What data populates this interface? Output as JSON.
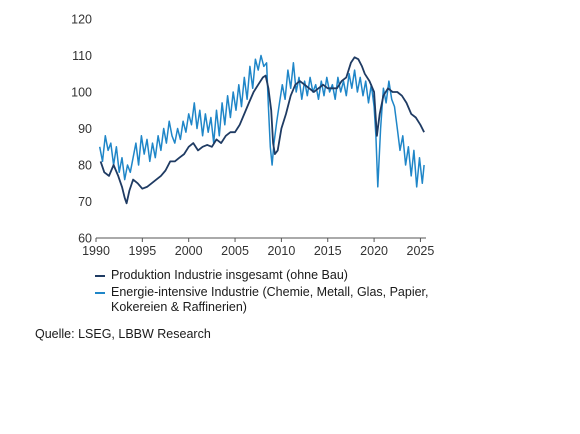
{
  "chart_data": {
    "type": "line",
    "title": "",
    "xlabel": "",
    "ylabel": "",
    "ylim": [
      60,
      120
    ],
    "xlim": [
      1990,
      2025.6
    ],
    "yticks": [
      "60",
      "70",
      "80",
      "90",
      "100",
      "110",
      "120"
    ],
    "xticks": [
      "1990",
      "1995",
      "2000",
      "2005",
      "2010",
      "2015",
      "2020",
      "2025"
    ],
    "grid": false,
    "legend": "bottom",
    "series": [
      {
        "name": "Produktion Industrie insgesamt (ohne Bau)",
        "color": "#1f3b63",
        "x": [
          1990.5,
          1990.9,
          1991.4,
          1991.9,
          1992.4,
          1992.8,
          1993.1,
          1993.3,
          1993.6,
          1994.0,
          1994.5,
          1995.0,
          1995.5,
          1996.0,
          1996.5,
          1997.0,
          1997.5,
          1998.0,
          1998.5,
          1999.0,
          1999.5,
          2000.0,
          2000.5,
          2001.0,
          2001.5,
          2002.0,
          2002.5,
          2003.0,
          2003.5,
          2004.0,
          2004.5,
          2005.0,
          2005.5,
          2006.0,
          2006.5,
          2007.0,
          2007.5,
          2008.0,
          2008.3,
          2008.6,
          2008.9,
          2009.1,
          2009.3,
          2009.6,
          2010.0,
          2010.5,
          2011.0,
          2011.5,
          2012.0,
          2012.5,
          2013.0,
          2013.5,
          2014.0,
          2014.5,
          2015.0,
          2015.5,
          2016.0,
          2016.5,
          2017.0,
          2017.5,
          2017.9,
          2018.3,
          2018.7,
          2019.0,
          2019.5,
          2020.0,
          2020.3,
          2020.6,
          2021.0,
          2021.5,
          2022.0,
          2022.5,
          2023.0,
          2023.5,
          2024.0,
          2024.5,
          2025.0,
          2025.4
        ],
        "values": [
          81,
          78,
          77,
          80,
          77,
          74,
          71,
          69.5,
          73,
          76,
          75,
          73.5,
          74,
          75,
          76,
          77,
          78.5,
          81,
          81,
          82,
          83,
          85,
          86,
          84,
          85,
          85.5,
          85,
          87,
          86,
          88,
          89,
          89,
          91,
          94,
          97,
          100,
          102,
          104,
          104.5,
          101,
          95,
          86,
          83,
          84,
          90,
          94,
          99,
          102,
          103,
          102,
          101,
          100,
          101,
          102,
          101,
          101,
          101,
          103,
          104,
          108,
          109.5,
          109,
          107,
          105,
          103,
          100,
          88,
          94,
          99,
          101,
          100,
          100,
          99,
          97,
          94,
          93,
          91,
          89
        ]
      },
      {
        "name": "Energie-intensive Industrie (Chemie, Metall, Glas, Papier, Kokereien & Raffinerien)",
        "color": "#1f86c8",
        "x": [
          1990.4,
          1990.7,
          1991.0,
          1991.3,
          1991.6,
          1991.9,
          1992.2,
          1992.5,
          1992.8,
          1993.1,
          1993.4,
          1993.7,
          1994.0,
          1994.3,
          1994.6,
          1994.9,
          1995.2,
          1995.5,
          1995.8,
          1996.1,
          1996.4,
          1996.7,
          1997.0,
          1997.3,
          1997.6,
          1997.9,
          1998.2,
          1998.5,
          1998.8,
          1999.1,
          1999.4,
          1999.7,
          2000.0,
          2000.3,
          2000.6,
          2000.9,
          2001.2,
          2001.5,
          2001.8,
          2002.1,
          2002.4,
          2002.7,
          2003.0,
          2003.3,
          2003.6,
          2003.9,
          2004.2,
          2004.5,
          2004.8,
          2005.1,
          2005.4,
          2005.7,
          2006.0,
          2006.3,
          2006.6,
          2006.9,
          2007.2,
          2007.5,
          2007.8,
          2008.1,
          2008.4,
          2008.6,
          2008.8,
          2009.0,
          2009.2,
          2009.5,
          2009.8,
          2010.1,
          2010.4,
          2010.7,
          2011.0,
          2011.3,
          2011.6,
          2011.9,
          2012.2,
          2012.5,
          2012.8,
          2013.1,
          2013.4,
          2013.7,
          2014.0,
          2014.3,
          2014.6,
          2014.9,
          2015.2,
          2015.5,
          2015.8,
          2016.1,
          2016.4,
          2016.7,
          2017.0,
          2017.3,
          2017.6,
          2017.9,
          2018.2,
          2018.5,
          2018.8,
          2019.1,
          2019.4,
          2019.7,
          2020.0,
          2020.2,
          2020.4,
          2020.7,
          2021.0,
          2021.3,
          2021.6,
          2021.9,
          2022.2,
          2022.5,
          2022.8,
          2023.1,
          2023.4,
          2023.7,
          2024.0,
          2024.3,
          2024.6,
          2024.9,
          2025.2,
          2025.4
        ],
        "values": [
          85,
          81,
          88,
          84,
          86,
          80,
          85,
          78,
          82,
          76,
          80,
          78,
          82,
          86,
          80,
          88,
          83,
          87,
          81,
          86,
          82,
          88,
          84,
          90,
          86,
          92,
          88,
          86,
          90,
          87,
          92,
          89,
          94,
          91,
          97,
          90,
          95,
          88,
          94,
          89,
          93,
          86,
          95,
          88,
          97,
          91,
          99,
          93,
          100,
          95,
          102,
          96,
          104,
          98,
          107,
          101,
          109,
          106,
          110,
          107,
          108,
          96,
          85,
          80,
          86,
          92,
          97,
          102,
          98,
          106,
          101,
          108,
          100,
          104,
          98,
          103,
          99,
          104,
          100,
          102,
          98,
          103,
          99,
          104,
          100,
          102,
          98,
          104,
          100,
          103,
          99,
          105,
          101,
          106,
          100,
          104,
          99,
          103,
          97,
          102,
          96,
          88,
          74,
          90,
          101,
          97,
          103,
          98,
          96,
          90,
          84,
          88,
          80,
          85,
          77,
          84,
          74,
          82,
          75,
          80
        ]
      }
    ]
  },
  "legend": {
    "items": [
      {
        "label": "Produktion Industrie insgesamt (ohne Bau)",
        "color": "#1f3b63"
      },
      {
        "label": "Energie-intensive Industrie (Chemie, Metall, Glas, Papier, Kokereien & Raffinerien)",
        "color": "#1f86c8"
      }
    ]
  },
  "source": "Quelle: LSEG, LBBW Research"
}
